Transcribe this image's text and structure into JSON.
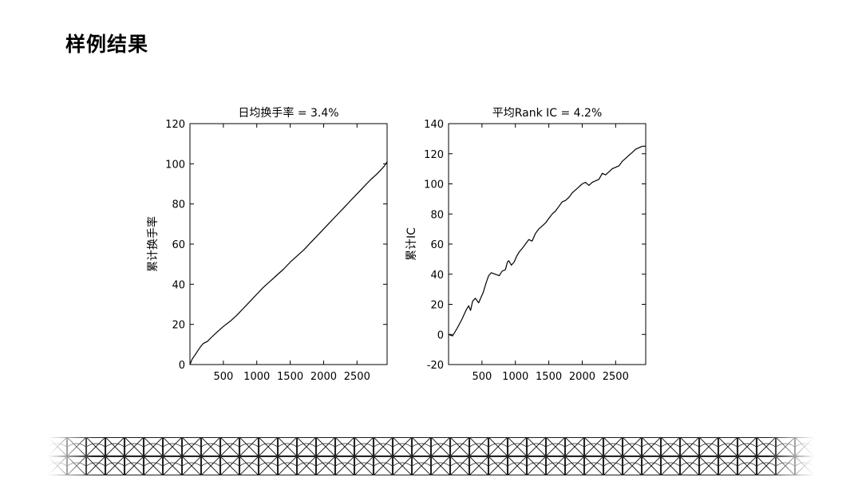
{
  "slide": {
    "title": "样例结果"
  },
  "chart_data": [
    {
      "type": "line",
      "title": "日均换手率 = 3.4%",
      "xlabel": "",
      "ylabel": "累计换手率",
      "xlim": [
        0,
        2950
      ],
      "ylim": [
        0,
        120
      ],
      "xticks": [
        500,
        1000,
        1500,
        2000,
        2500
      ],
      "yticks": [
        0,
        20,
        40,
        60,
        80,
        100,
        120
      ],
      "grid": false,
      "series": [
        {
          "x": [
            0,
            30,
            80,
            120,
            160,
            200,
            260,
            320,
            400,
            500,
            600,
            700,
            800,
            900,
            1000,
            1100,
            1200,
            1300,
            1400,
            1500,
            1600,
            1700,
            1800,
            1900,
            2000,
            2100,
            2200,
            2300,
            2400,
            2500,
            2600,
            2700,
            2800,
            2900,
            2950
          ],
          "y": [
            0,
            2.5,
            5,
            7,
            9,
            10.5,
            11.5,
            13.5,
            16,
            19,
            21.5,
            24.5,
            28,
            31.5,
            35,
            38.5,
            41.5,
            44.5,
            47.5,
            51,
            54,
            57,
            60.5,
            64,
            67.5,
            71,
            74.5,
            78,
            81.5,
            85,
            88.5,
            92,
            95,
            98.5,
            101
          ]
        }
      ]
    },
    {
      "type": "line",
      "title": "平均Rank IC = 4.2%",
      "xlabel": "",
      "ylabel": "累计IC",
      "xlim": [
        0,
        2950
      ],
      "ylim": [
        -20,
        140
      ],
      "xticks": [
        500,
        1000,
        1500,
        2000,
        2500
      ],
      "yticks": [
        -20,
        0,
        20,
        40,
        60,
        80,
        100,
        120,
        140
      ],
      "grid": false,
      "series": [
        {
          "x": [
            0,
            60,
            100,
            140,
            200,
            260,
            300,
            330,
            360,
            400,
            450,
            480,
            520,
            560,
            600,
            640,
            700,
            760,
            800,
            850,
            880,
            900,
            940,
            980,
            1020,
            1060,
            1100,
            1150,
            1200,
            1250,
            1300,
            1350,
            1400,
            1450,
            1500,
            1550,
            1600,
            1650,
            1700,
            1750,
            1800,
            1850,
            1900,
            1950,
            2000,
            2050,
            2100,
            2150,
            2200,
            2250,
            2300,
            2350,
            2400,
            2450,
            2500,
            2550,
            2600,
            2650,
            2700,
            2750,
            2800,
            2850,
            2900,
            2950
          ],
          "y": [
            0,
            -1,
            2,
            5,
            10,
            16,
            19,
            16,
            22,
            24,
            21,
            24,
            28,
            34,
            39,
            41,
            40,
            39,
            42,
            43,
            48,
            49,
            46,
            48,
            52,
            55,
            57,
            60,
            63,
            62,
            67,
            70,
            72,
            74,
            77,
            80,
            82,
            85,
            88,
            89,
            91,
            94,
            96,
            98,
            100,
            101,
            99,
            101,
            102,
            103,
            107,
            106,
            108,
            110,
            111,
            112,
            115,
            117,
            119,
            121,
            123,
            124,
            125,
            125
          ]
        }
      ]
    }
  ]
}
